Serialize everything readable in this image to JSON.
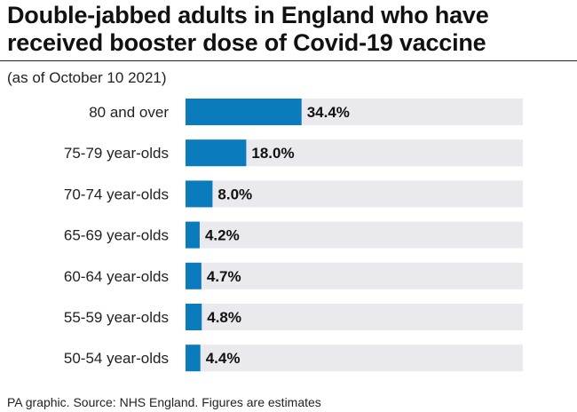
{
  "header": {
    "title": "Double-jabbed adults in England who have received booster dose of Covid-19 vaccine",
    "subtitle": "(as of October 10 2021)"
  },
  "footer": {
    "source": "PA graphic. Source: NHS England. Figures are estimates"
  },
  "colors": {
    "bar": "#0a7bbd",
    "track": "#e9e9ee"
  },
  "chart_data": {
    "type": "bar",
    "orientation": "horizontal",
    "title": "Double-jabbed adults in England who have received booster dose of Covid-19 vaccine",
    "subtitle": "(as of October 10 2021)",
    "categories": [
      "80 and over",
      "75-79 year-olds",
      "70-74 year-olds",
      "65-69 year-olds",
      "60-64 year-olds",
      "55-59 year-olds",
      "50-54 year-olds"
    ],
    "values": [
      34.4,
      18.0,
      8.0,
      4.2,
      4.7,
      4.8,
      4.4
    ],
    "value_labels": [
      "34.4%",
      "18.0%",
      "8.0%",
      "4.2%",
      "4.7%",
      "4.8%",
      "4.4%"
    ],
    "xlim": [
      0,
      100
    ],
    "unit": "%",
    "grid": false
  }
}
